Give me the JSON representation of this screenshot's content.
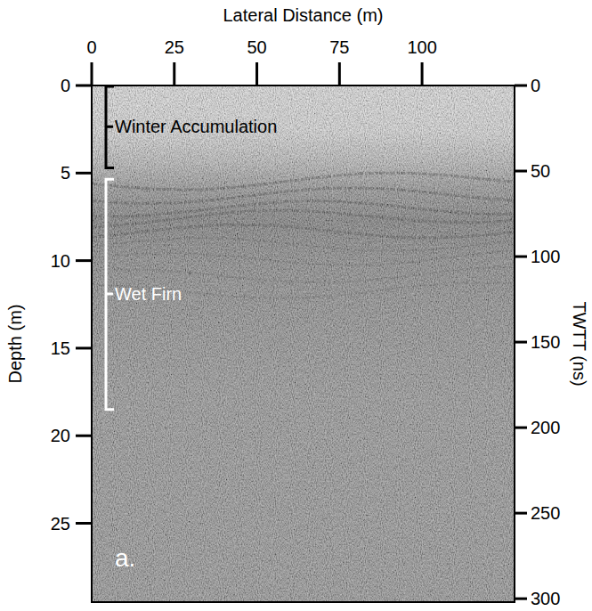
{
  "chart_data": {
    "type": "radargram",
    "x_label": "Lateral Distance (m)",
    "y_label": "Depth (m)",
    "y2_label": "TWTT (ns)",
    "xlim": [
      0,
      128
    ],
    "xticks": [
      0,
      25,
      50,
      75,
      100
    ],
    "ylim": [
      0,
      29.5
    ],
    "yticks": [
      0,
      5,
      10,
      15,
      20,
      25
    ],
    "y2lim": [
      0,
      302
    ],
    "y2ticks": [
      0,
      50,
      100,
      150,
      200,
      250,
      300
    ],
    "annotations": [
      {
        "text": "Winter Accumulation",
        "y_range": [
          0,
          4.7
        ],
        "color": "#000000"
      },
      {
        "text": "Wet Firn",
        "y_range": [
          5.3,
          18.5
        ],
        "color": "#ffffff"
      }
    ],
    "panel_label": "a."
  }
}
